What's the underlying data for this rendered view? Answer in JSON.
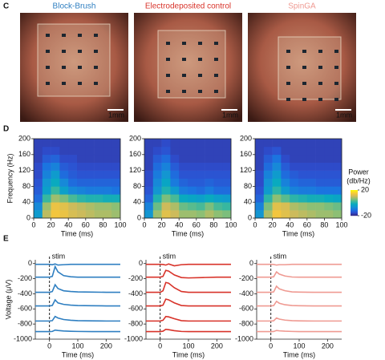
{
  "panels": {
    "C": {
      "label": "C",
      "photos": [
        {
          "title": "Block-Brush",
          "color": "#2f7fc1",
          "scale_bar": "1mm"
        },
        {
          "title": "Electrodeposited control",
          "color": "#d8332a",
          "scale_bar": "1mm"
        },
        {
          "title": "SpinGA",
          "color": "#ef9a92",
          "scale_bar": "1mm"
        }
      ]
    },
    "D": {
      "label": "D",
      "y_label": "Frequency (Hz)",
      "x_label": "Time (ms)",
      "xlim": [
        0,
        100
      ],
      "ylim": [
        0,
        200
      ],
      "xticks": [
        0,
        20,
        40,
        60,
        80,
        100
      ],
      "yticks": [
        0,
        40,
        80,
        120,
        160,
        200
      ],
      "time_bins": [
        0,
        10,
        20,
        30,
        40,
        50,
        60,
        70,
        80,
        90,
        100
      ],
      "freq_bins": [
        0,
        20,
        40,
        60,
        80,
        100,
        120,
        140,
        160,
        180,
        200
      ],
      "colorbar": {
        "title": [
          "Power",
          "(db/Hz)"
        ],
        "lim": [
          -20,
          20
        ],
        "ticks": [
          20,
          -20
        ]
      },
      "spectrograms": [
        [
          [
            -5,
            10,
            15,
            14,
            12,
            11,
            10,
            9,
            9,
            8
          ],
          [
            -8,
            8,
            14,
            13,
            11,
            10,
            9,
            8,
            8,
            7
          ],
          [
            -12,
            2,
            8,
            6,
            3,
            1,
            0,
            0,
            -1,
            -1
          ],
          [
            -14,
            -4,
            2,
            -4,
            -8,
            -9,
            -10,
            -10,
            -10,
            -11
          ],
          [
            -15,
            -6,
            -2,
            -8,
            -12,
            -13,
            -13,
            -13,
            -13,
            -13
          ],
          [
            -16,
            -9,
            -5,
            -12,
            -14,
            -15,
            -15,
            -15,
            -15,
            -15
          ],
          [
            -16,
            -11,
            -9,
            -14,
            -15,
            -16,
            -16,
            -16,
            -16,
            -16
          ],
          [
            -17,
            -14,
            -13,
            -16,
            -16,
            -17,
            -17,
            -17,
            -17,
            -17
          ],
          [
            -17,
            -16,
            -16,
            -17,
            -17,
            -17,
            -17,
            -17,
            -17,
            -17
          ],
          [
            -17,
            -17,
            -17,
            -17,
            -17,
            -17,
            -17,
            -17,
            -17,
            -17
          ]
        ],
        [
          [
            -6,
            8,
            13,
            11,
            8,
            8,
            7,
            9,
            7,
            6
          ],
          [
            -9,
            5,
            11,
            9,
            5,
            4,
            3,
            6,
            3,
            2
          ],
          [
            -13,
            0,
            6,
            3,
            -2,
            -3,
            -4,
            -2,
            -4,
            -5
          ],
          [
            -15,
            -6,
            0,
            -5,
            -10,
            -11,
            -12,
            -10,
            -12,
            -12
          ],
          [
            -16,
            -8,
            -3,
            -10,
            -13,
            -14,
            -14,
            -13,
            -14,
            -14
          ],
          [
            -16,
            -10,
            -6,
            -12,
            -15,
            -15,
            -15,
            -15,
            -15,
            -15
          ],
          [
            -17,
            -12,
            -9,
            -14,
            -16,
            -16,
            -16,
            -16,
            -16,
            -16
          ],
          [
            -17,
            -14,
            -12,
            -16,
            -17,
            -17,
            -17,
            -17,
            -17,
            -17
          ],
          [
            -17,
            -16,
            -15,
            -17,
            -17,
            -17,
            -17,
            -17,
            -17,
            -17
          ],
          [
            -17,
            -17,
            -16,
            -17,
            -17,
            -17,
            -17,
            -17,
            -17,
            -17
          ]
        ],
        [
          [
            -6,
            9,
            15,
            13,
            11,
            10,
            9,
            8,
            8,
            7
          ],
          [
            -9,
            6,
            13,
            12,
            9,
            8,
            7,
            7,
            6,
            5
          ],
          [
            -13,
            1,
            7,
            4,
            1,
            0,
            -1,
            -1,
            -2,
            -3
          ],
          [
            -15,
            -5,
            1,
            -5,
            -9,
            -10,
            -10,
            -11,
            -11,
            -11
          ],
          [
            -16,
            -7,
            -2,
            -9,
            -12,
            -13,
            -13,
            -14,
            -14,
            -14
          ],
          [
            -16,
            -9,
            -5,
            -12,
            -14,
            -15,
            -15,
            -15,
            -15,
            -15
          ],
          [
            -17,
            -12,
            -8,
            -14,
            -16,
            -16,
            -16,
            -16,
            -16,
            -16
          ],
          [
            -17,
            -14,
            -11,
            -16,
            -17,
            -17,
            -17,
            -17,
            -17,
            -17
          ],
          [
            -17,
            -16,
            -15,
            -17,
            -17,
            -17,
            -17,
            -17,
            -17,
            -17
          ],
          [
            -17,
            -17,
            -17,
            -17,
            -17,
            -17,
            -17,
            -17,
            -17,
            -17
          ]
        ]
      ]
    },
    "E": {
      "label": "E",
      "stim_label": "stim",
      "y_label": "Voltage (μV)",
      "x_label": "Time (ms)",
      "xlim": [
        -50,
        250
      ],
      "ylim": [
        -1000,
        50
      ],
      "xticks": [
        0,
        100,
        200
      ],
      "yticks": [
        0,
        -200,
        -400,
        -600,
        -800,
        -1000
      ],
      "x": [
        -50,
        0,
        10,
        20,
        30,
        50,
        75,
        100,
        150,
        200,
        250
      ],
      "traces": [
        [
          [
            -10,
            -10,
            -15,
            -5,
            -20,
            -15,
            -10,
            -10,
            -10,
            -10,
            -10
          ],
          [
            -180,
            -180,
            -170,
            -40,
            -110,
            -160,
            -175,
            -180,
            -180,
            -180,
            -180
          ],
          [
            -380,
            -380,
            -370,
            -280,
            -330,
            -360,
            -370,
            -375,
            -378,
            -380,
            -380
          ],
          [
            -560,
            -560,
            -555,
            -480,
            -520,
            -540,
            -550,
            -555,
            -558,
            -560,
            -560
          ],
          [
            -760,
            -760,
            -755,
            -700,
            -720,
            -740,
            -750,
            -755,
            -758,
            -760,
            -760
          ],
          [
            -900,
            -900,
            -898,
            -880,
            -885,
            -892,
            -896,
            -898,
            -900,
            -900,
            -900
          ]
        ],
        [
          [
            -10,
            -10,
            -12,
            -20,
            -5,
            -30,
            -15,
            -10,
            -10,
            -10,
            -10
          ],
          [
            -180,
            -180,
            -170,
            -90,
            -100,
            -150,
            -185,
            -190,
            -185,
            -180,
            -180
          ],
          [
            -380,
            -380,
            -360,
            -250,
            -260,
            -320,
            -370,
            -380,
            -380,
            -380,
            -380
          ],
          [
            -560,
            -560,
            -550,
            -470,
            -480,
            -520,
            -555,
            -560,
            -560,
            -560,
            -560
          ],
          [
            -760,
            -760,
            -750,
            -700,
            -705,
            -730,
            -755,
            -760,
            -760,
            -760,
            -760
          ],
          [
            -900,
            -900,
            -895,
            -870,
            -875,
            -888,
            -898,
            -900,
            -900,
            -900,
            -900
          ]
        ],
        [
          [
            -10,
            -10,
            -12,
            -20,
            -15,
            -15,
            -10,
            -10,
            -10,
            -10,
            -10
          ],
          [
            -180,
            -180,
            -175,
            -110,
            -140,
            -165,
            -178,
            -180,
            -180,
            -180,
            -180
          ],
          [
            -380,
            -380,
            -375,
            -300,
            -335,
            -360,
            -375,
            -378,
            -380,
            -380,
            -380
          ],
          [
            -560,
            -560,
            -556,
            -500,
            -525,
            -545,
            -555,
            -558,
            -560,
            -560,
            -560
          ],
          [
            -760,
            -760,
            -757,
            -720,
            -735,
            -748,
            -755,
            -758,
            -760,
            -760,
            -760
          ],
          [
            -900,
            -900,
            -899,
            -885,
            -890,
            -895,
            -898,
            -900,
            -900,
            -900,
            -900
          ]
        ]
      ]
    }
  }
}
